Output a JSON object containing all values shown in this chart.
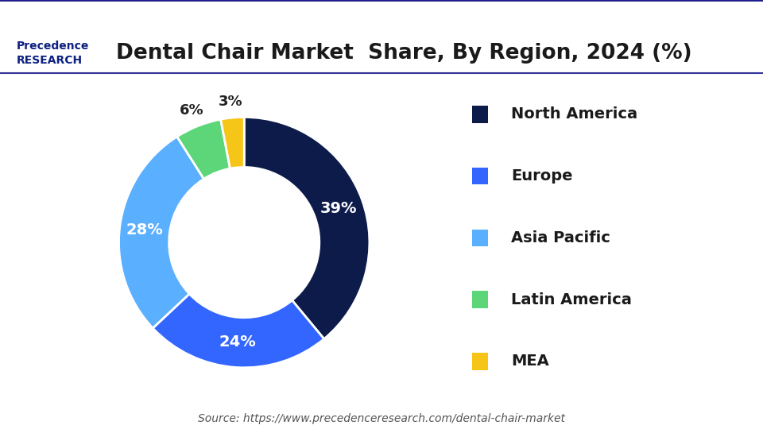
{
  "title": "Dental Chair Market  Share, By Region, 2024 (%)",
  "segments": [
    {
      "label": "North America",
      "value": 39,
      "color": "#0d1b4b"
    },
    {
      "label": "Europe",
      "value": 24,
      "color": "#3366ff"
    },
    {
      "label": "Asia Pacific",
      "value": 28,
      "color": "#5aafff"
    },
    {
      "label": "Latin America",
      "value": 6,
      "color": "#5dd67a"
    },
    {
      "label": "MEA",
      "value": 3,
      "color": "#f5c518"
    }
  ],
  "source_text": "Source: https://www.precedenceresearch.com/dental-chair-market",
  "background_color": "#ffffff",
  "title_fontsize": 19,
  "label_fontsize": 13,
  "legend_fontsize": 14,
  "source_fontsize": 10,
  "donut_width": 0.4,
  "startangle": 90
}
